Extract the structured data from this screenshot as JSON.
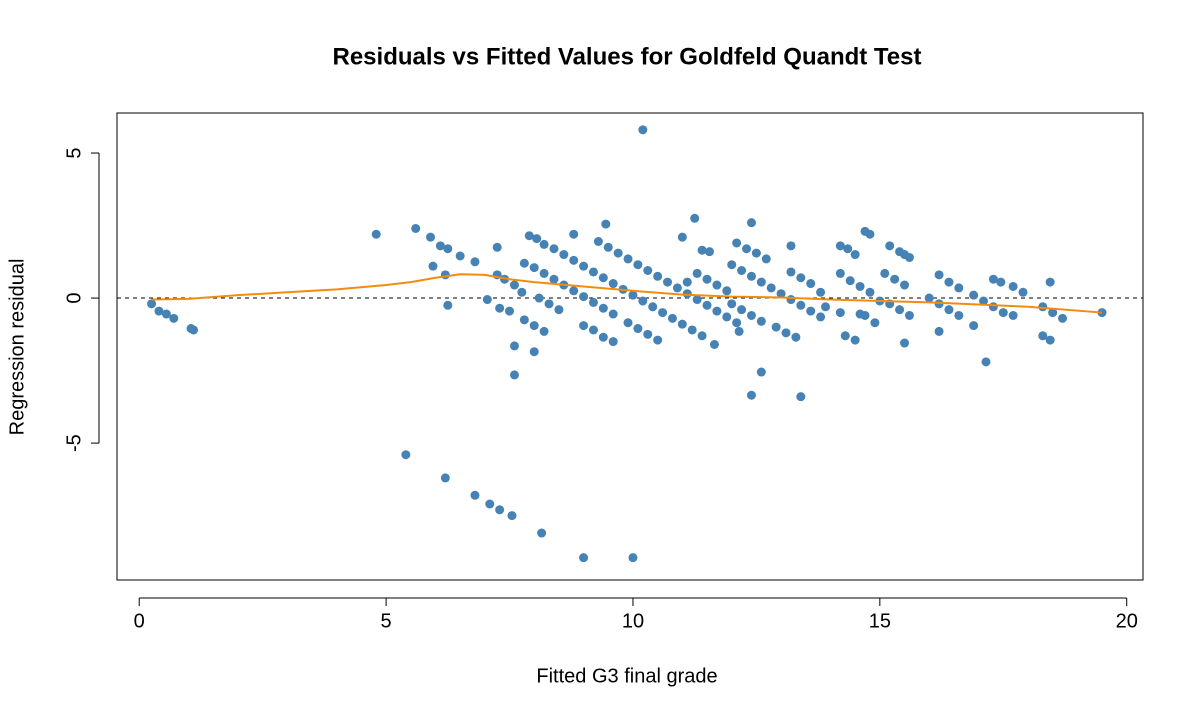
{
  "chart_data": {
    "type": "scatter",
    "title": "Residuals vs Fitted Values for Goldfeld Quandt Test",
    "xlabel": "Fitted G3 final grade",
    "ylabel": "Regression residual",
    "xlim": [
      -0.45,
      20.33
    ],
    "ylim": [
      -9.72,
      6.38
    ],
    "xticks": [
      0,
      5,
      10,
      15,
      20
    ],
    "yticks": [
      -5,
      0,
      5
    ],
    "hline": 0,
    "series": [
      {
        "type": "scatter",
        "color": "#4682b4",
        "x": [
          0.25,
          0.4,
          0.55,
          0.7,
          1.05,
          1.1,
          4.8,
          5.6,
          5.9,
          6.1,
          6.25,
          6.5,
          6.8,
          5.95,
          6.2,
          6.25,
          7.25,
          7.25,
          7.4,
          7.6,
          7.75,
          7.05,
          7.3,
          7.5,
          7.8,
          8.0,
          8.2,
          7.6,
          8.0,
          7.6,
          7.9,
          8.05,
          8.2,
          8.4,
          8.6,
          8.8,
          9.0,
          9.2,
          9.4,
          9.6,
          9.8,
          10.0,
          10.2,
          10.4,
          10.6,
          10.8,
          11.0,
          11.2,
          11.4,
          11.65,
          7.8,
          8.0,
          8.2,
          8.4,
          8.6,
          8.8,
          9.0,
          9.2,
          9.4,
          9.6,
          9.3,
          9.5,
          9.7,
          9.9,
          10.1,
          10.3,
          10.5,
          10.7,
          10.9,
          11.1,
          11.3,
          11.5,
          11.7,
          11.9,
          12.1,
          8.1,
          8.3,
          8.5,
          9.0,
          9.2,
          9.4,
          9.6,
          9.9,
          10.1,
          10.3,
          10.5,
          8.8,
          9.45,
          10.2,
          11.0,
          11.25,
          11.4,
          11.55,
          11.3,
          11.5,
          11.7,
          11.9,
          11.1,
          12.0,
          12.1,
          12.3,
          12.5,
          12.7,
          12.4,
          12.2,
          12.4,
          12.6,
          12.8,
          13.0,
          13.2,
          13.4,
          13.6,
          13.8,
          12.0,
          12.2,
          12.4,
          12.6,
          12.15,
          12.6,
          12.4,
          13.4,
          13.2,
          13.2,
          13.4,
          13.6,
          13.8,
          12.9,
          13.1,
          13.3,
          14.2,
          14.35,
          14.5,
          14.7,
          14.8,
          14.2,
          14.4,
          14.6,
          14.8,
          14.3,
          14.5,
          14.9,
          14.6,
          14.7,
          13.9,
          14.2,
          15.2,
          15.4,
          15.5,
          15.6,
          15.1,
          15.3,
          15.5,
          15.0,
          15.2,
          15.4,
          15.6,
          15.5,
          16.0,
          16.2,
          16.4,
          16.6,
          16.2,
          16.4,
          16.6,
          16.2,
          16.9,
          16.9,
          17.1,
          17.15,
          17.3,
          17.45,
          17.7,
          17.9,
          17.3,
          17.5,
          17.7,
          18.3,
          18.5,
          18.7,
          18.3,
          18.45,
          18.45,
          19.5,
          5.4,
          6.2,
          6.8,
          7.1,
          7.3,
          7.55,
          8.15,
          9.0,
          10.0
        ],
        "values": [
          -0.2,
          -0.45,
          -0.55,
          -0.7,
          -1.05,
          -1.1,
          2.2,
          2.4,
          2.1,
          1.8,
          1.7,
          1.45,
          1.25,
          1.1,
          0.8,
          -0.25,
          1.75,
          0.8,
          0.65,
          0.45,
          0.2,
          -0.05,
          -0.35,
          -0.45,
          -0.75,
          -0.95,
          -1.15,
          -1.65,
          -1.85,
          -2.65,
          2.15,
          2.05,
          1.85,
          1.7,
          1.5,
          1.3,
          1.1,
          0.9,
          0.7,
          0.5,
          0.3,
          0.1,
          -0.1,
          -0.3,
          -0.5,
          -0.7,
          -0.9,
          -1.1,
          -1.3,
          -1.6,
          1.2,
          1.05,
          0.85,
          0.65,
          0.45,
          0.25,
          0.05,
          -0.15,
          -0.35,
          -0.55,
          1.95,
          1.75,
          1.55,
          1.35,
          1.15,
          0.95,
          0.75,
          0.55,
          0.35,
          0.15,
          -0.05,
          -0.25,
          -0.45,
          -0.65,
          -0.85,
          0.0,
          -0.2,
          -0.4,
          -0.95,
          -1.1,
          -1.35,
          -1.5,
          -0.85,
          -1.05,
          -1.25,
          -1.45,
          2.2,
          2.55,
          5.8,
          2.1,
          2.75,
          1.65,
          1.6,
          0.85,
          0.65,
          0.45,
          0.25,
          0.55,
          1.15,
          1.9,
          1.7,
          1.55,
          1.35,
          2.6,
          0.95,
          0.75,
          0.55,
          0.35,
          0.15,
          -0.05,
          -0.25,
          -0.45,
          -0.65,
          -0.2,
          -0.4,
          -0.6,
          -0.8,
          -1.15,
          -2.55,
          -3.35,
          -3.4,
          1.8,
          0.9,
          0.7,
          0.5,
          0.2,
          -1.0,
          -1.2,
          -1.35,
          1.8,
          1.7,
          1.5,
          2.3,
          2.2,
          0.85,
          0.6,
          0.4,
          0.2,
          -1.3,
          -1.45,
          -0.85,
          -0.55,
          -0.6,
          -0.3,
          -0.5,
          1.8,
          1.6,
          1.5,
          1.4,
          0.85,
          0.65,
          0.45,
          -0.1,
          -0.2,
          -0.4,
          -0.6,
          -1.55,
          0.0,
          0.8,
          0.55,
          0.35,
          -0.2,
          -0.4,
          -0.6,
          -1.15,
          -0.95,
          0.1,
          -0.1,
          -2.2,
          0.65,
          0.55,
          0.4,
          0.2,
          -0.3,
          -0.5,
          -0.6,
          -0.3,
          -0.5,
          -0.7,
          -1.3,
          -1.45,
          0.55,
          -0.5,
          -5.4,
          -6.2,
          -6.8,
          -7.1,
          -7.3,
          -7.5,
          -8.1,
          -8.95,
          -8.95
        ]
      },
      {
        "type": "line",
        "color": "#f28c0f",
        "x": [
          0.25,
          1,
          2,
          3,
          4,
          5,
          5.5,
          6,
          6.5,
          7,
          7.5,
          8,
          9,
          10,
          11,
          12,
          13,
          14,
          15,
          16,
          17,
          18,
          19.5
        ],
        "values": [
          -0.05,
          -0.03,
          0.1,
          0.2,
          0.3,
          0.45,
          0.55,
          0.7,
          0.82,
          0.8,
          0.65,
          0.55,
          0.4,
          0.25,
          0.12,
          0.05,
          0.02,
          -0.05,
          -0.1,
          -0.15,
          -0.22,
          -0.3,
          -0.5
        ]
      }
    ]
  }
}
